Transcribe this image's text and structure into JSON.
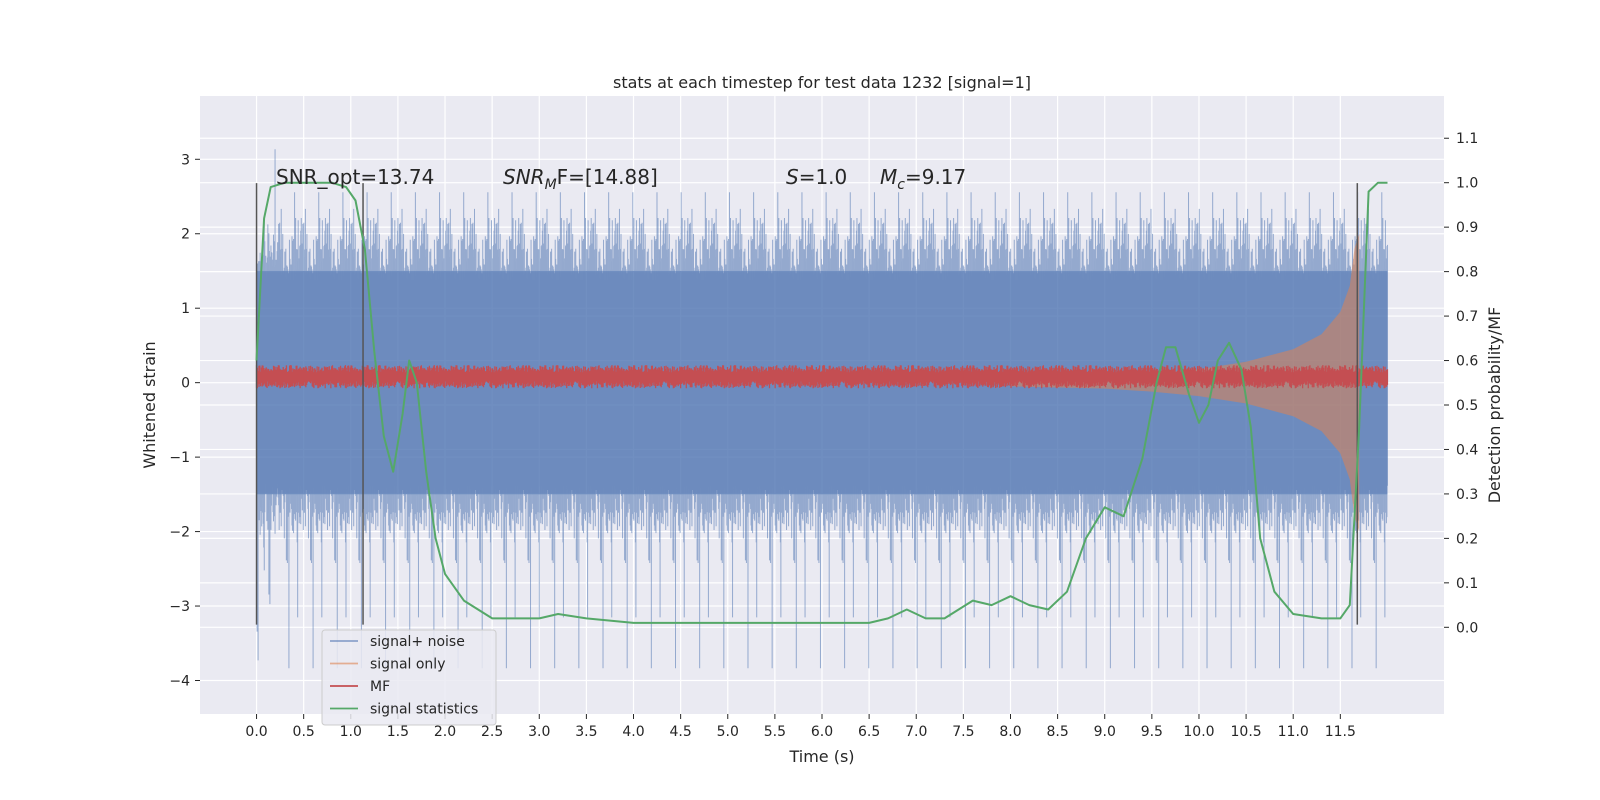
{
  "chart_data": {
    "type": "line",
    "title": "stats at each timestep for test data 1232 [signal=1]",
    "xlabel": "Time (s)",
    "ylabel": "Whitened strain",
    "y2label": "Detection probability/MF",
    "xlim": [
      -0.6,
      12.6
    ],
    "ylim": [
      -4.45,
      3.85
    ],
    "y2lim": [
      -0.195,
      1.195
    ],
    "xticks": [
      0.0,
      0.5,
      1.0,
      1.5,
      2.0,
      2.5,
      3.0,
      3.5,
      4.0,
      4.5,
      5.0,
      5.5,
      6.0,
      6.5,
      7.0,
      7.5,
      8.0,
      8.5,
      9.0,
      9.5,
      10.0,
      10.5,
      11.0,
      11.5
    ],
    "xtick_labels": [
      "0.0",
      "0.5",
      "1.0",
      "1.5",
      "2.0",
      "2.5",
      "3.0",
      "3.5",
      "4.0",
      "4.5",
      "5.0",
      "5.5",
      "6.0",
      "6.5",
      "7.0",
      "7.5",
      "8.0",
      "8.5",
      "9.0",
      "9.5",
      "10.0",
      "10.5",
      "11.0",
      "11.5"
    ],
    "yticks": [
      3,
      2,
      1,
      0,
      -1,
      -2,
      -3,
      -4
    ],
    "ytick_labels": [
      "3",
      "2",
      "1",
      "0",
      "−1",
      "−2",
      "−3",
      "−4"
    ],
    "y2ticks": [
      1.1,
      1.0,
      0.9,
      0.8,
      0.7,
      0.6,
      0.5,
      0.4,
      0.3,
      0.2,
      0.1,
      0.0
    ],
    "y2tick_labels": [
      "1.1",
      "1.0",
      "0.9",
      "0.8",
      "0.7",
      "0.6",
      "0.5",
      "0.4",
      "0.3",
      "0.2",
      "0.1",
      "0.0"
    ],
    "grid": true,
    "legend_position": "lower-left",
    "annotations": {
      "snr_opt": "SNR_opt=13.74",
      "snr_mf_italic": "SNR",
      "snr_mf_sub": "M",
      "snr_mf_rest": "F=[14.88]",
      "s_italic": "S",
      "s_rest": "=1.0",
      "mc_italic": "M",
      "mc_sub": "c",
      "mc_rest": "=9.17"
    },
    "vertical_lines": [
      {
        "x": 0.0,
        "y_range": [
          -3.25,
          2.68
        ]
      },
      {
        "x": 1.13,
        "y_range": [
          -3.25,
          2.68
        ]
      },
      {
        "x": 11.68,
        "y_range": [
          -3.25,
          2.68
        ]
      }
    ],
    "series": [
      {
        "name": "signal+ noise",
        "color": "#4c72b0",
        "kind": "noise-band",
        "x_range": [
          0.0,
          12.0
        ],
        "envelope_upper": 1.5,
        "envelope_lower": -1.5,
        "spike_max": 3.5,
        "spike_min": -4.1
      },
      {
        "name": "signal only",
        "color": "#dd8452",
        "kind": "chirp",
        "x": [
          8.0,
          9.0,
          9.5,
          10.0,
          10.5,
          11.0,
          11.3,
          11.5,
          11.6,
          11.65,
          11.7
        ],
        "amplitude": [
          0.05,
          0.08,
          0.12,
          0.18,
          0.28,
          0.45,
          0.65,
          0.95,
          1.3,
          1.8,
          2.0
        ]
      },
      {
        "name": "MF",
        "color": "#c44e52",
        "kind": "band",
        "x_range": [
          0.0,
          12.0
        ],
        "center": 0.08,
        "half_width": 0.12
      },
      {
        "name": "signal statistics",
        "color": "#55a868",
        "kind": "line",
        "axis": "right",
        "x": [
          0.0,
          0.08,
          0.15,
          0.3,
          0.5,
          0.8,
          0.95,
          1.05,
          1.15,
          1.25,
          1.35,
          1.45,
          1.55,
          1.62,
          1.7,
          1.8,
          1.9,
          2.0,
          2.2,
          2.5,
          2.8,
          3.0,
          3.2,
          3.5,
          4.0,
          4.5,
          5.0,
          5.5,
          6.0,
          6.5,
          6.7,
          6.9,
          7.1,
          7.3,
          7.6,
          7.8,
          8.0,
          8.2,
          8.4,
          8.6,
          8.8,
          9.0,
          9.2,
          9.4,
          9.55,
          9.65,
          9.75,
          9.9,
          10.0,
          10.1,
          10.2,
          10.32,
          10.45,
          10.55,
          10.65,
          10.8,
          11.0,
          11.3,
          11.5,
          11.6,
          11.7,
          11.8,
          11.9,
          12.0
        ],
        "values": [
          0.6,
          0.92,
          0.99,
          1.0,
          1.0,
          1.0,
          0.99,
          0.96,
          0.85,
          0.62,
          0.43,
          0.35,
          0.48,
          0.6,
          0.55,
          0.35,
          0.2,
          0.12,
          0.06,
          0.02,
          0.02,
          0.02,
          0.03,
          0.02,
          0.01,
          0.01,
          0.01,
          0.01,
          0.01,
          0.01,
          0.02,
          0.04,
          0.02,
          0.02,
          0.06,
          0.05,
          0.07,
          0.05,
          0.04,
          0.08,
          0.2,
          0.27,
          0.25,
          0.38,
          0.55,
          0.63,
          0.63,
          0.52,
          0.46,
          0.5,
          0.6,
          0.64,
          0.58,
          0.45,
          0.2,
          0.08,
          0.03,
          0.02,
          0.02,
          0.05,
          0.45,
          0.98,
          1.0,
          1.0
        ]
      }
    ]
  }
}
